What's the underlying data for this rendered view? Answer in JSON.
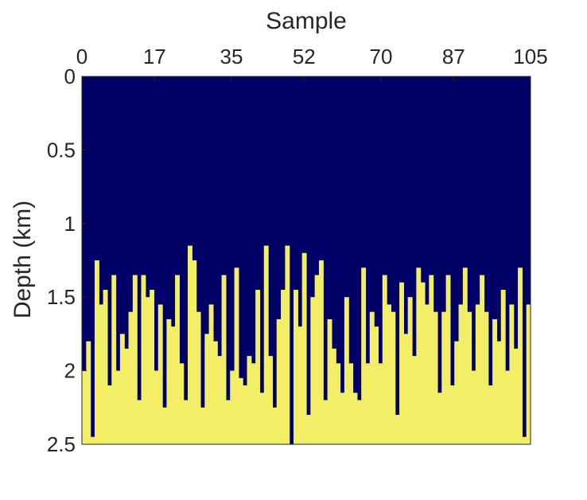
{
  "chart_data": {
    "type": "heatmap",
    "xlabel": "Sample",
    "ylabel": "Depth (km)",
    "x_axis_position": "top",
    "y_direction": "reversed",
    "xlim": [
      0,
      105
    ],
    "ylim": [
      0,
      2.5
    ],
    "x_ticks": [
      0,
      17,
      35,
      52,
      70,
      87,
      105
    ],
    "y_ticks": [
      0,
      0.5,
      1,
      1.5,
      2,
      2.5
    ],
    "x_tick_labels": [
      "0",
      "17",
      "35",
      "52",
      "70",
      "87",
      "105"
    ],
    "y_tick_labels": [
      "0",
      "0.5",
      "1",
      "1.5",
      "2",
      "2.5"
    ],
    "colors": {
      "low": "#000066",
      "high": "#f2ee66"
    },
    "interface_depth_km": [
      2.0,
      1.8,
      2.45,
      1.25,
      1.55,
      1.45,
      2.1,
      1.35,
      2.0,
      1.75,
      1.85,
      1.6,
      1.35,
      2.2,
      1.35,
      1.5,
      1.45,
      2.0,
      1.55,
      2.25,
      1.65,
      1.7,
      1.35,
      1.95,
      2.2,
      1.15,
      1.25,
      1.6,
      2.25,
      1.75,
      1.55,
      1.8,
      1.9,
      1.35,
      2.2,
      2.0,
      1.3,
      2.05,
      2.1,
      1.9,
      1.95,
      1.45,
      2.15,
      1.15,
      1.9,
      2.25,
      1.65,
      1.45,
      1.15,
      2.5,
      1.45,
      1.7,
      1.2,
      2.3,
      1.5,
      1.35,
      1.25,
      2.2,
      1.65,
      1.85,
      1.95,
      2.15,
      1.5,
      1.95,
      2.15,
      2.2,
      1.3,
      1.95,
      1.6,
      1.7,
      1.95,
      1.35,
      1.55,
      1.6,
      2.3,
      1.4,
      1.75,
      1.5,
      1.9,
      1.3,
      1.4,
      1.55,
      1.35,
      1.6,
      2.15,
      1.6,
      1.35,
      2.1,
      1.8,
      1.55,
      1.3,
      1.6,
      2.0,
      1.55,
      1.35,
      1.6,
      2.1,
      1.65,
      1.8,
      1.45,
      2.0,
      1.55,
      1.85,
      1.3,
      2.45,
      1.55
    ]
  }
}
